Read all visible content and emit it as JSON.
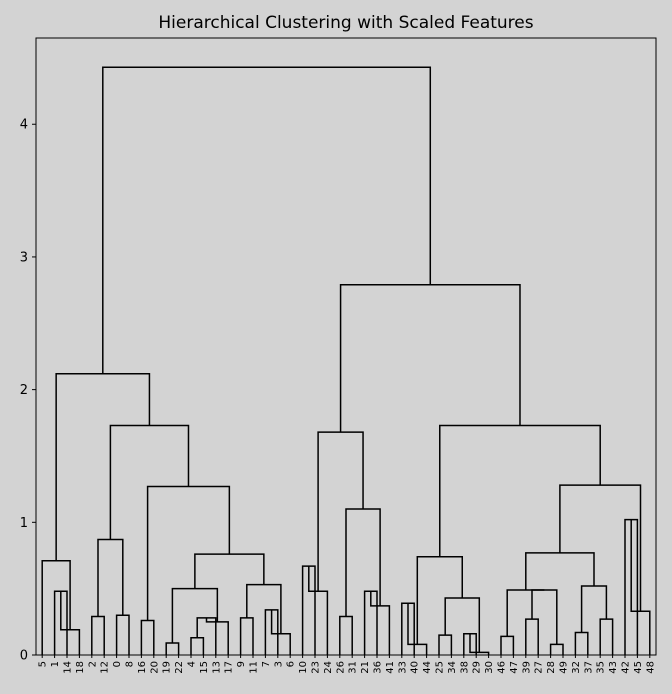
{
  "chart_data": {
    "type": "dendrogram",
    "title": "Hierarchical Clustering with Scaled Features",
    "xlabel": "",
    "ylabel": "",
    "ylim": [
      0,
      4.65
    ],
    "yticks": [
      "0",
      "1",
      "2",
      "3",
      "4"
    ],
    "grid": false,
    "colors": {
      "background": "#d3d3d3",
      "plot_area": "#d3d3d3",
      "lines": "#000000"
    },
    "leaves": [
      "5",
      "1",
      "14",
      "18",
      "2",
      "12",
      "0",
      "8",
      "16",
      "20",
      "19",
      "22",
      "4",
      "15",
      "13",
      "17",
      "9",
      "11",
      "7",
      "3",
      "6",
      "10",
      "23",
      "24",
      "26",
      "31",
      "21",
      "36",
      "41",
      "33",
      "40",
      "44",
      "25",
      "34",
      "38",
      "29",
      "30",
      "46",
      "47",
      "39",
      "27",
      "28",
      "49",
      "32",
      "37",
      "35",
      "43",
      "42",
      "45",
      "48"
    ],
    "merges": [
      [
        "1",
        "14",
        0.48
      ],
      [
        "14",
        "18",
        0.19
      ],
      [
        "5",
        "1",
        0.71
      ],
      [
        "2",
        "12",
        0.29
      ],
      [
        "0",
        "8",
        0.3
      ],
      [
        "12",
        "0",
        0.87
      ],
      [
        "16",
        "20",
        0.26
      ],
      [
        "19",
        "22",
        0.09
      ],
      [
        "4",
        "15",
        0.13
      ],
      [
        "15",
        "13",
        0.28
      ],
      [
        "13",
        "17",
        0.25
      ],
      [
        "22",
        "15",
        0.5
      ],
      [
        "9",
        "11",
        0.28
      ],
      [
        "7",
        "3",
        0.34
      ],
      [
        "3",
        "6",
        0.16
      ],
      [
        "11",
        "3",
        0.53
      ],
      [
        "15",
        "11",
        0.76
      ],
      [
        "20",
        "13",
        1.27
      ],
      [
        "12",
        "20",
        1.73
      ],
      [
        "1",
        "12",
        2.12
      ],
      [
        "10",
        "23",
        0.67
      ],
      [
        "23",
        "24",
        0.48
      ],
      [
        "26",
        "31",
        0.29
      ],
      [
        "21",
        "36",
        0.48
      ],
      [
        "36",
        "41",
        0.37
      ],
      [
        "31",
        "36",
        1.1
      ],
      [
        "23",
        "31",
        1.68
      ],
      [
        "33",
        "40",
        0.39
      ],
      [
        "40",
        "44",
        0.08
      ],
      [
        "25",
        "34",
        0.15
      ],
      [
        "38",
        "29",
        0.16
      ],
      [
        "29",
        "30",
        0.02
      ],
      [
        "25",
        "29",
        0.43
      ],
      [
        "33",
        "25",
        0.74
      ],
      [
        "46",
        "47",
        0.14
      ],
      [
        "39",
        "27",
        0.27
      ],
      [
        "28",
        "49",
        0.08
      ],
      [
        "27",
        "49",
        0.49
      ],
      [
        "46",
        "27",
        0.49
      ],
      [
        "32",
        "37",
        0.17
      ],
      [
        "35",
        "43",
        0.27
      ],
      [
        "37",
        "35",
        0.52
      ],
      [
        "47",
        "37",
        0.77
      ],
      [
        "42",
        "45",
        1.02
      ],
      [
        "45",
        "48",
        0.33
      ],
      [
        "37",
        "45",
        1.28
      ],
      [
        "40",
        "37",
        1.73
      ],
      [
        "24",
        "40",
        2.79
      ],
      [
        "1",
        "24",
        4.43
      ]
    ]
  }
}
